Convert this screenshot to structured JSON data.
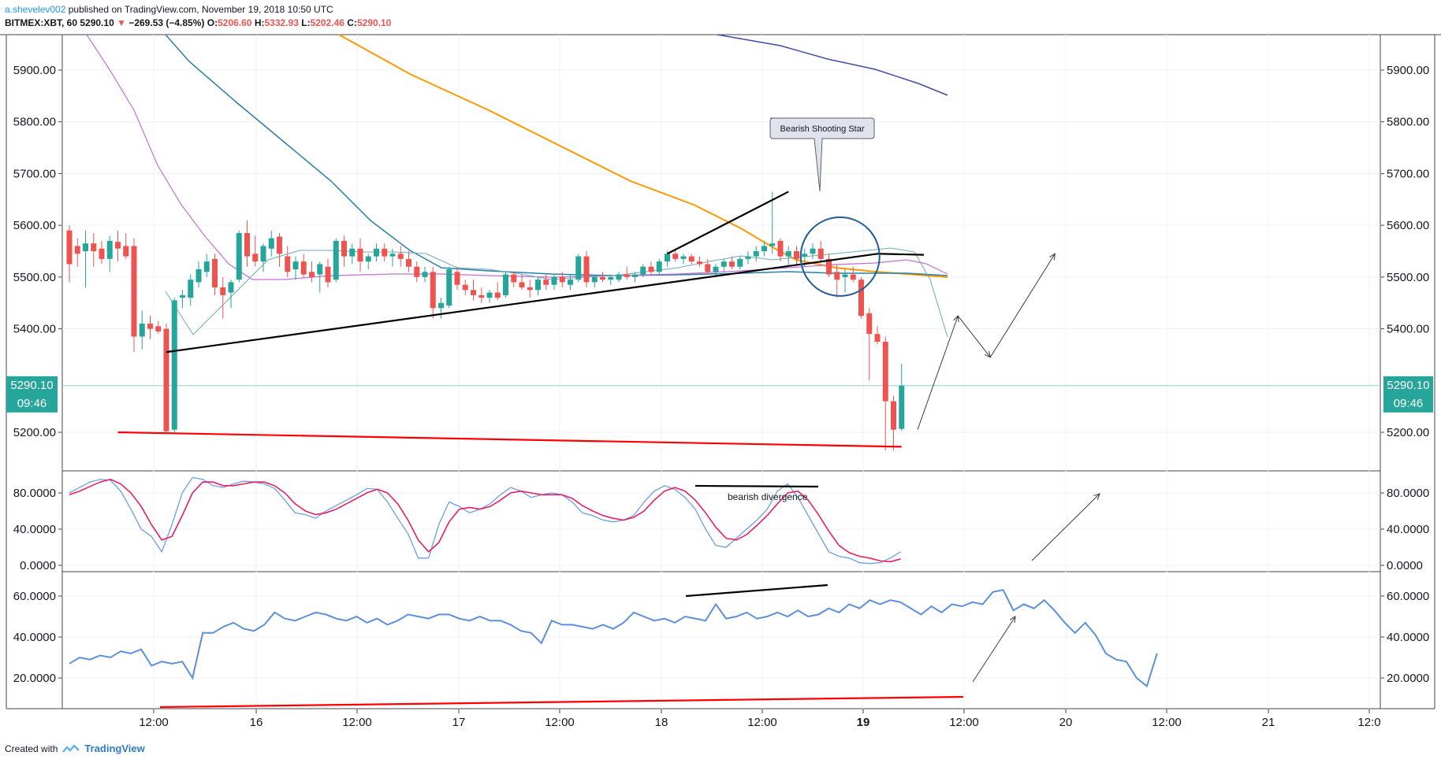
{
  "header": {
    "author": "a.shevelev002",
    "published": "published on TradingView.com, November 19, 2018 10:50 UTC",
    "symbol": "BITMEX:XBT, 60",
    "last": "5290.10",
    "change": "−269.53 (−4.85%)",
    "o_label": "O:",
    "o": "5206.60",
    "h_label": "H:",
    "h": "5332.93",
    "l_label": "L:",
    "l": "5202.46",
    "c_label": "C:",
    "c": "5290.10"
  },
  "footer": {
    "created": "Created with",
    "brand": "TradingView"
  },
  "price_badge": {
    "price": "5290.10",
    "countdown": "09:46"
  },
  "annotations": {
    "callout": "Bearish Shooting Star",
    "divergence": "bearish divergence"
  },
  "colors": {
    "up": "#26a69a",
    "down": "#ef5350",
    "ma_orange": "#ff9800",
    "ma_navy": "#3f4da8",
    "ma_teal": "#2a7fa6",
    "ma_purple": "#c46fd0",
    "ma_thin": "#6fa8b8",
    "stoch_k": "#6a9ee8",
    "stoch_d": "#e91e63",
    "rsi": "#5c8fdc",
    "support": "#ff0000"
  },
  "chart_data": [
    {
      "type": "candlestick",
      "symbol": "BITMEX:XBT",
      "interval": "60",
      "ylim": [
        5130,
        5980
      ],
      "y_ticks": [
        "5900.00",
        "5800.00",
        "5700.00",
        "5600.00",
        "5500.00",
        "5400.00",
        "5200.00"
      ],
      "x_ticks": [
        "12:00",
        "16",
        "12:00",
        "17",
        "12:00",
        "18",
        "12:00",
        "19",
        "12:00",
        "20",
        "12:00",
        "21",
        "12:0"
      ],
      "candles": [
        {
          "o": 5590,
          "h": 5600,
          "l": 5490,
          "c": 5525
        },
        {
          "o": 5560,
          "h": 5575,
          "l": 5520,
          "c": 5545
        },
        {
          "o": 5550,
          "h": 5590,
          "l": 5480,
          "c": 5565
        },
        {
          "o": 5565,
          "h": 5585,
          "l": 5520,
          "c": 5550
        },
        {
          "o": 5555,
          "h": 5570,
          "l": 5525,
          "c": 5535
        },
        {
          "o": 5535,
          "h": 5580,
          "l": 5510,
          "c": 5570
        },
        {
          "o": 5568,
          "h": 5590,
          "l": 5530,
          "c": 5555
        },
        {
          "o": 5560,
          "h": 5585,
          "l": 5535,
          "c": 5540
        },
        {
          "o": 5560,
          "h": 5575,
          "l": 5355,
          "c": 5385
        },
        {
          "o": 5385,
          "h": 5435,
          "l": 5360,
          "c": 5410
        },
        {
          "o": 5410,
          "h": 5425,
          "l": 5380,
          "c": 5400
        },
        {
          "o": 5405,
          "h": 5415,
          "l": 5390,
          "c": 5395
        },
        {
          "o": 5400,
          "h": 5410,
          "l": 5200,
          "c": 5202
        },
        {
          "o": 5205,
          "h": 5460,
          "l": 5200,
          "c": 5455
        },
        {
          "o": 5460,
          "h": 5475,
          "l": 5440,
          "c": 5465
        },
        {
          "o": 5460,
          "h": 5505,
          "l": 5445,
          "c": 5495
        },
        {
          "o": 5490,
          "h": 5530,
          "l": 5480,
          "c": 5515
        },
        {
          "o": 5510,
          "h": 5545,
          "l": 5500,
          "c": 5530
        },
        {
          "o": 5535,
          "h": 5545,
          "l": 5465,
          "c": 5480
        },
        {
          "o": 5480,
          "h": 5500,
          "l": 5420,
          "c": 5465
        },
        {
          "o": 5470,
          "h": 5495,
          "l": 5440,
          "c": 5490
        },
        {
          "o": 5495,
          "h": 5590,
          "l": 5490,
          "c": 5585
        },
        {
          "o": 5585,
          "h": 5610,
          "l": 5520,
          "c": 5540
        },
        {
          "o": 5545,
          "h": 5580,
          "l": 5520,
          "c": 5530
        },
        {
          "o": 5530,
          "h": 5565,
          "l": 5510,
          "c": 5560
        },
        {
          "o": 5555,
          "h": 5590,
          "l": 5540,
          "c": 5575
        },
        {
          "o": 5578,
          "h": 5585,
          "l": 5520,
          "c": 5545
        },
        {
          "o": 5540,
          "h": 5560,
          "l": 5500,
          "c": 5510
        },
        {
          "o": 5515,
          "h": 5540,
          "l": 5495,
          "c": 5530
        },
        {
          "o": 5530,
          "h": 5545,
          "l": 5500,
          "c": 5505
        },
        {
          "o": 5510,
          "h": 5530,
          "l": 5490,
          "c": 5500
        },
        {
          "o": 5505,
          "h": 5530,
          "l": 5470,
          "c": 5525
        },
        {
          "o": 5520,
          "h": 5535,
          "l": 5480,
          "c": 5490
        },
        {
          "o": 5495,
          "h": 5575,
          "l": 5490,
          "c": 5570
        },
        {
          "o": 5570,
          "h": 5580,
          "l": 5520,
          "c": 5540
        },
        {
          "o": 5540,
          "h": 5565,
          "l": 5525,
          "c": 5555
        },
        {
          "o": 5555,
          "h": 5575,
          "l": 5510,
          "c": 5530
        },
        {
          "o": 5530,
          "h": 5545,
          "l": 5515,
          "c": 5540
        },
        {
          "o": 5540,
          "h": 5565,
          "l": 5530,
          "c": 5555
        },
        {
          "o": 5555,
          "h": 5565,
          "l": 5530,
          "c": 5540
        },
        {
          "o": 5540,
          "h": 5555,
          "l": 5520,
          "c": 5545
        },
        {
          "o": 5545,
          "h": 5560,
          "l": 5520,
          "c": 5535
        },
        {
          "o": 5535,
          "h": 5550,
          "l": 5510,
          "c": 5520
        },
        {
          "o": 5520,
          "h": 5530,
          "l": 5490,
          "c": 5500
        },
        {
          "o": 5500,
          "h": 5520,
          "l": 5490,
          "c": 5510
        },
        {
          "o": 5510,
          "h": 5520,
          "l": 5420,
          "c": 5440
        },
        {
          "o": 5440,
          "h": 5460,
          "l": 5420,
          "c": 5450
        },
        {
          "o": 5445,
          "h": 5520,
          "l": 5440,
          "c": 5515
        },
        {
          "o": 5510,
          "h": 5520,
          "l": 5475,
          "c": 5485
        },
        {
          "o": 5485,
          "h": 5495,
          "l": 5465,
          "c": 5475
        },
        {
          "o": 5475,
          "h": 5495,
          "l": 5455,
          "c": 5465
        },
        {
          "o": 5465,
          "h": 5480,
          "l": 5450,
          "c": 5460
        },
        {
          "o": 5460,
          "h": 5475,
          "l": 5450,
          "c": 5470
        },
        {
          "o": 5470,
          "h": 5490,
          "l": 5455,
          "c": 5460
        },
        {
          "o": 5465,
          "h": 5510,
          "l": 5460,
          "c": 5505
        },
        {
          "o": 5505,
          "h": 5510,
          "l": 5480,
          "c": 5490
        },
        {
          "o": 5490,
          "h": 5505,
          "l": 5475,
          "c": 5480
        },
        {
          "o": 5480,
          "h": 5495,
          "l": 5460,
          "c": 5475
        },
        {
          "o": 5475,
          "h": 5500,
          "l": 5465,
          "c": 5495
        },
        {
          "o": 5495,
          "h": 5505,
          "l": 5475,
          "c": 5485
        },
        {
          "o": 5485,
          "h": 5505,
          "l": 5475,
          "c": 5500
        },
        {
          "o": 5500,
          "h": 5510,
          "l": 5480,
          "c": 5490
        },
        {
          "o": 5485,
          "h": 5505,
          "l": 5475,
          "c": 5495
        },
        {
          "o": 5495,
          "h": 5545,
          "l": 5490,
          "c": 5540
        },
        {
          "o": 5540,
          "h": 5550,
          "l": 5480,
          "c": 5490
        },
        {
          "o": 5490,
          "h": 5505,
          "l": 5480,
          "c": 5500
        },
        {
          "o": 5500,
          "h": 5510,
          "l": 5490,
          "c": 5495
        },
        {
          "o": 5495,
          "h": 5505,
          "l": 5485,
          "c": 5500
        },
        {
          "o": 5495,
          "h": 5510,
          "l": 5490,
          "c": 5505
        },
        {
          "o": 5505,
          "h": 5520,
          "l": 5495,
          "c": 5500
        },
        {
          "o": 5500,
          "h": 5510,
          "l": 5490,
          "c": 5505
        },
        {
          "o": 5505,
          "h": 5525,
          "l": 5500,
          "c": 5520
        },
        {
          "o": 5520,
          "h": 5530,
          "l": 5505,
          "c": 5510
        },
        {
          "o": 5510,
          "h": 5535,
          "l": 5505,
          "c": 5530
        },
        {
          "o": 5530,
          "h": 5550,
          "l": 5520,
          "c": 5545
        },
        {
          "o": 5545,
          "h": 5555,
          "l": 5530,
          "c": 5535
        },
        {
          "o": 5535,
          "h": 5545,
          "l": 5525,
          "c": 5540
        },
        {
          "o": 5540,
          "h": 5545,
          "l": 5525,
          "c": 5530
        },
        {
          "o": 5530,
          "h": 5540,
          "l": 5520,
          "c": 5525
        },
        {
          "o": 5525,
          "h": 5535,
          "l": 5505,
          "c": 5510
        },
        {
          "o": 5510,
          "h": 5525,
          "l": 5500,
          "c": 5520
        },
        {
          "o": 5520,
          "h": 5535,
          "l": 5510,
          "c": 5530
        },
        {
          "o": 5530,
          "h": 5540,
          "l": 5515,
          "c": 5520
        },
        {
          "o": 5520,
          "h": 5540,
          "l": 5515,
          "c": 5535
        },
        {
          "o": 5535,
          "h": 5550,
          "l": 5525,
          "c": 5540
        },
        {
          "o": 5540,
          "h": 5560,
          "l": 5530,
          "c": 5550
        },
        {
          "o": 5550,
          "h": 5570,
          "l": 5540,
          "c": 5560
        },
        {
          "o": 5560,
          "h": 5665,
          "l": 5545,
          "c": 5565
        },
        {
          "o": 5570,
          "h": 5575,
          "l": 5530,
          "c": 5540
        },
        {
          "o": 5540,
          "h": 5560,
          "l": 5520,
          "c": 5550
        },
        {
          "o": 5550,
          "h": 5560,
          "l": 5525,
          "c": 5535
        },
        {
          "o": 5540,
          "h": 5555,
          "l": 5520,
          "c": 5545
        },
        {
          "o": 5545,
          "h": 5565,
          "l": 5535,
          "c": 5555
        },
        {
          "o": 5555,
          "h": 5570,
          "l": 5530,
          "c": 5535
        },
        {
          "o": 5535,
          "h": 5545,
          "l": 5500,
          "c": 5505
        },
        {
          "o": 5510,
          "h": 5525,
          "l": 5460,
          "c": 5495
        },
        {
          "o": 5500,
          "h": 5515,
          "l": 5470,
          "c": 5505
        },
        {
          "o": 5505,
          "h": 5520,
          "l": 5490,
          "c": 5495
        },
        {
          "o": 5495,
          "h": 5500,
          "l": 5420,
          "c": 5425
        },
        {
          "o": 5430,
          "h": 5440,
          "l": 5300,
          "c": 5390
        },
        {
          "o": 5390,
          "h": 5405,
          "l": 5370,
          "c": 5375
        },
        {
          "o": 5375,
          "h": 5385,
          "l": 5165,
          "c": 5260
        },
        {
          "o": 5260,
          "h": 5270,
          "l": 5165,
          "c": 5205
        },
        {
          "o": 5206.6,
          "h": 5332.93,
          "l": 5202.46,
          "c": 5290.1
        }
      ],
      "trend_lines": [
        {
          "name": "ascending-support",
          "from": {
            "index": 12,
            "price": 5355
          },
          "to": {
            "index": 100,
            "price": 5545
          }
        },
        {
          "name": "rising-wedge-top",
          "from": {
            "index": 74,
            "price": 5545
          },
          "to": {
            "index": 89,
            "price": 5665
          }
        },
        {
          "name": "horizontal-support",
          "from": {
            "index": 6,
            "price": 5200
          },
          "to": {
            "index": 103,
            "price": 5172
          }
        }
      ],
      "projection": [
        {
          "index": 104,
          "price": 5205
        },
        {
          "index": 109,
          "price": 5425
        },
        {
          "index": 113,
          "price": 5345
        },
        {
          "index": 121,
          "price": 5545
        }
      ],
      "shooting_star_index": 89,
      "circle_center": {
        "index": 95,
        "price": 5535
      }
    },
    {
      "type": "line",
      "name": "Stochastic",
      "ylim": [
        -5,
        100
      ],
      "y_ticks": [
        "80.0000",
        "40.0000",
        "0.0000"
      ],
      "series": [
        {
          "values": [
            80,
            86,
            92,
            95,
            94,
            82,
            62,
            40,
            32,
            15,
            45,
            80,
            97,
            95,
            88,
            86,
            90,
            93,
            92,
            90,
            85,
            72,
            58,
            56,
            52,
            60,
            66,
            72,
            78,
            85,
            84,
            70,
            52,
            35,
            8,
            8,
            45,
            70,
            65,
            58,
            62,
            68,
            78,
            86,
            82,
            75,
            78,
            80,
            78,
            70,
            58,
            55,
            50,
            48,
            50,
            55,
            70,
            82,
            88,
            84,
            75,
            62,
            40,
            22,
            20,
            30,
            40,
            50,
            62,
            82,
            90,
            75,
            55,
            35,
            15,
            10,
            8,
            3,
            2,
            3,
            8,
            15
          ]
        },
        {
          "values": [
            78,
            82,
            87,
            92,
            95,
            90,
            80,
            65,
            45,
            28,
            32,
            55,
            80,
            92,
            92,
            88,
            88,
            90,
            92,
            92,
            88,
            80,
            68,
            60,
            56,
            58,
            62,
            68,
            74,
            80,
            84,
            80,
            68,
            50,
            28,
            15,
            25,
            48,
            62,
            64,
            62,
            65,
            72,
            80,
            82,
            80,
            78,
            78,
            78,
            74,
            66,
            60,
            55,
            52,
            50,
            53,
            60,
            72,
            82,
            86,
            82,
            72,
            58,
            42,
            30,
            28,
            34,
            44,
            55,
            68,
            80,
            82,
            72,
            56,
            38,
            22,
            14,
            10,
            8,
            5,
            4,
            7
          ]
        }
      ],
      "divergence_line": {
        "from": {
          "index": 54,
          "price": 88
        },
        "to": {
          "index": 69,
          "price": 86
        }
      }
    },
    {
      "type": "line",
      "name": "RSI",
      "ylim": [
        8,
        68
      ],
      "y_ticks": [
        "60.0000",
        "40.0000",
        "20.0000"
      ],
      "series": [
        {
          "values": [
            27,
            30,
            29,
            31,
            30,
            33,
            32,
            34,
            26,
            28,
            27,
            28,
            20,
            42,
            42,
            45,
            47,
            44,
            43,
            46,
            52,
            49,
            48,
            50,
            52,
            51,
            49,
            48,
            50,
            47,
            49,
            46,
            48,
            51,
            50,
            49,
            51,
            51,
            49,
            48,
            50,
            48,
            48,
            46,
            43,
            42,
            37,
            48,
            46,
            46,
            45,
            44,
            46,
            44,
            47,
            52,
            50,
            48,
            49,
            47,
            50,
            49,
            48,
            56,
            49,
            50,
            52,
            49,
            50,
            52,
            50,
            53,
            50,
            51,
            54,
            52,
            56,
            54,
            58,
            56,
            58,
            57,
            54,
            51,
            55,
            52,
            56,
            55,
            57,
            56,
            62,
            63,
            53,
            56,
            54,
            58,
            53,
            47,
            42,
            47,
            41,
            32,
            29,
            28,
            20,
            16,
            32
          ]
        }
      ],
      "support_line": {
        "from": {
          "index": 6,
          "price": 9
        },
        "to": {
          "index": 103,
          "price": 12
        }
      },
      "high_line": {
        "from": {
          "index": 78,
          "price": 60
        },
        "to": {
          "index": 93,
          "price": 64
        }
      }
    }
  ]
}
